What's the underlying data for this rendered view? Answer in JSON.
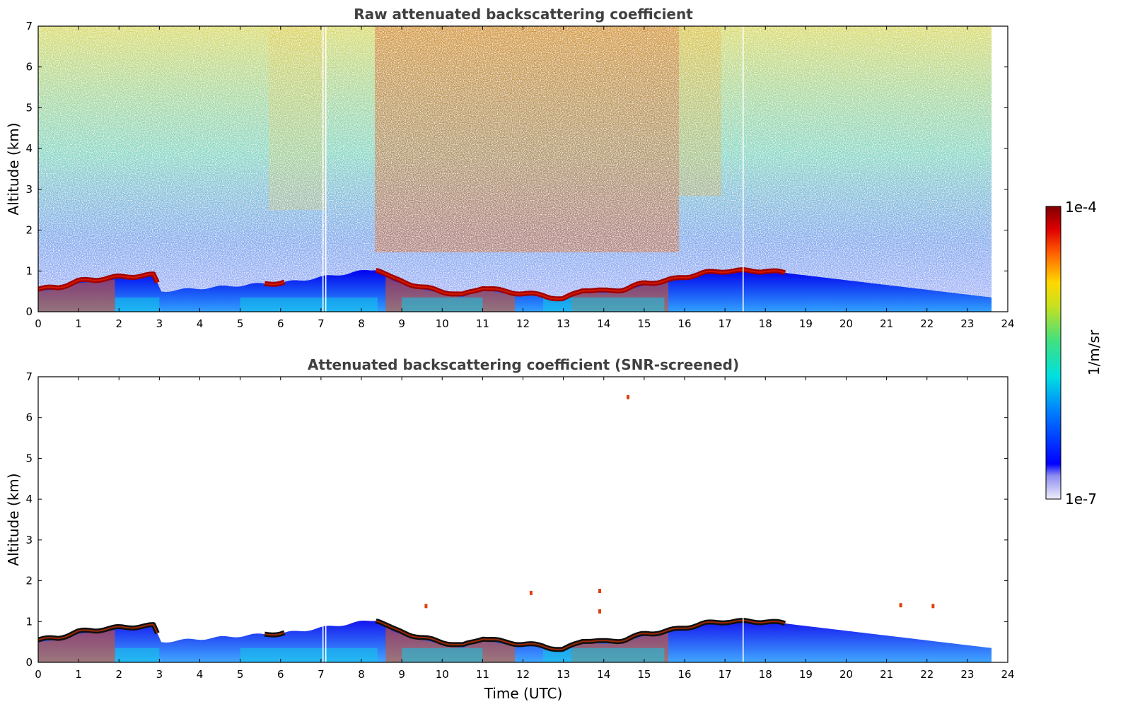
{
  "chart_data": [
    {
      "type": "heatmap",
      "title": "Raw attenuated backscattering coefficient",
      "xlabel": "",
      "ylabel": "Altitude (km)",
      "xlim": [
        0,
        24
      ],
      "ylim": [
        0,
        7
      ],
      "xticks": [
        "0",
        "1",
        "2",
        "3",
        "4",
        "5",
        "6",
        "7",
        "8",
        "9",
        "10",
        "11",
        "12",
        "13",
        "14",
        "15",
        "16",
        "17",
        "18",
        "19",
        "20",
        "21",
        "22",
        "23",
        "24"
      ],
      "yticks": [
        "0",
        "1",
        "2",
        "3",
        "4",
        "5",
        "6",
        "7"
      ],
      "data_end_hour": 23.6,
      "gaps_hour": [
        7.05,
        7.12,
        17.45
      ],
      "layer_top_km": {
        "hour": [
          0,
          0.5,
          1.0,
          1.5,
          2.0,
          2.9,
          3.0,
          5.7,
          6.0,
          8.4,
          8.8,
          9.5,
          10.0,
          10.5,
          11.0,
          11.5,
          12.0,
          12.5,
          13.0,
          13.5,
          14.0,
          14.5,
          15.0,
          15.5,
          16.0,
          16.5,
          17.0,
          17.5,
          18.0,
          18.5
        ],
        "km": [
          0.55,
          0.6,
          0.75,
          0.8,
          0.85,
          0.9,
          0.5,
          0.7,
          0.7,
          1.05,
          0.8,
          0.6,
          0.5,
          0.4,
          0.6,
          0.5,
          0.45,
          0.4,
          0.3,
          0.55,
          0.5,
          0.55,
          0.7,
          0.75,
          0.85,
          0.95,
          1.0,
          1.0,
          1.0,
          0.95
        ]
      },
      "colorbar": {
        "label": "1/m/sr",
        "max_label": "1e-4",
        "min_label": "1e-7",
        "scale": "log",
        "colormap": "jet"
      }
    },
    {
      "type": "heatmap",
      "title": "Attenuated backscattering coefficient (SNR-screened)",
      "xlabel": "Time (UTC)",
      "ylabel": "Altitude (km)",
      "xlim": [
        0,
        24
      ],
      "ylim": [
        0,
        7
      ],
      "xticks": [
        "0",
        "1",
        "2",
        "3",
        "4",
        "5",
        "6",
        "7",
        "8",
        "9",
        "10",
        "11",
        "12",
        "13",
        "14",
        "15",
        "16",
        "17",
        "18",
        "19",
        "20",
        "21",
        "22",
        "23",
        "24"
      ],
      "yticks": [
        "0",
        "1",
        "2",
        "3",
        "4",
        "5",
        "6",
        "7"
      ],
      "data_end_hour": 23.6,
      "gaps_hour": [
        7.05,
        7.12,
        17.45
      ],
      "layer_top_km": {
        "hour": [
          0,
          0.5,
          1.0,
          1.5,
          2.0,
          2.9,
          3.0,
          5.7,
          6.0,
          8.4,
          8.8,
          9.5,
          10.0,
          10.5,
          11.0,
          11.5,
          12.0,
          12.5,
          13.0,
          13.5,
          14.0,
          14.5,
          15.0,
          15.5,
          16.0,
          16.5,
          17.0,
          17.5,
          18.0,
          18.5
        ],
        "km": [
          0.55,
          0.6,
          0.75,
          0.8,
          0.85,
          0.9,
          0.5,
          0.7,
          0.7,
          1.05,
          0.8,
          0.6,
          0.5,
          0.4,
          0.6,
          0.5,
          0.45,
          0.4,
          0.3,
          0.55,
          0.5,
          0.55,
          0.7,
          0.75,
          0.85,
          0.95,
          1.0,
          1.0,
          1.0,
          0.95
        ]
      },
      "isolated_echoes": [
        {
          "hour": 14.6,
          "km": 6.5
        },
        {
          "hour": 12.2,
          "km": 1.7
        },
        {
          "hour": 13.9,
          "km": 1.75
        },
        {
          "hour": 13.9,
          "km": 1.25
        },
        {
          "hour": 9.6,
          "km": 1.38
        },
        {
          "hour": 22.15,
          "km": 1.38
        },
        {
          "hour": 21.35,
          "km": 1.4
        }
      ]
    }
  ]
}
